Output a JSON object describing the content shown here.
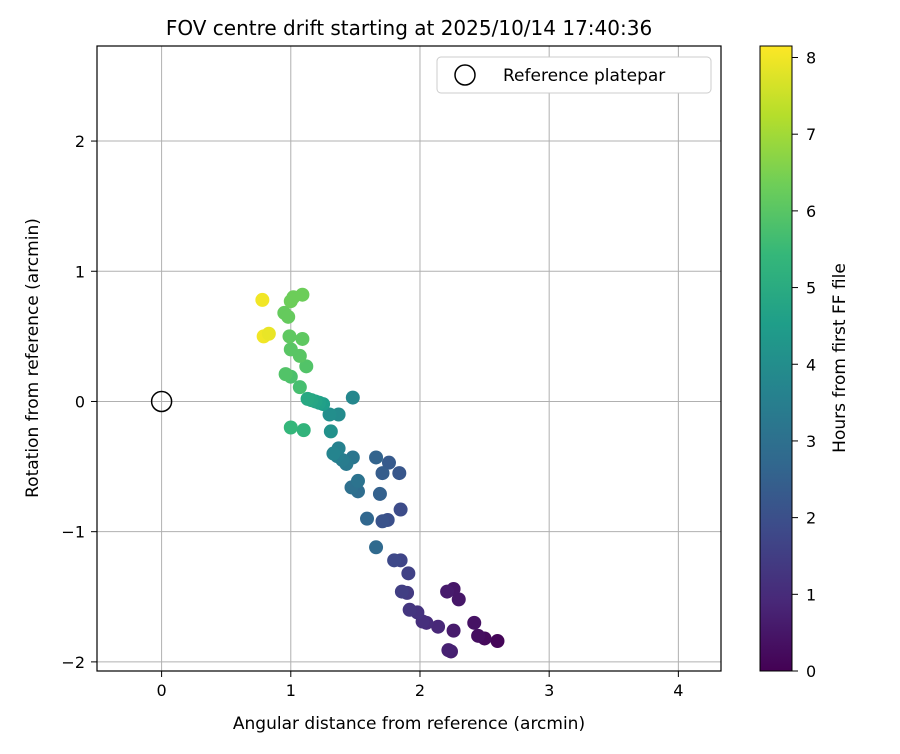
{
  "chart_data": {
    "type": "scatter",
    "title": "FOV centre drift starting at 2025/10/14 17:40:36",
    "xlabel": "Angular distance from reference (arcmin)",
    "ylabel": "Rotation from reference (arcmin)",
    "xlim": [
      -0.5,
      4.33
    ],
    "ylim": [
      -2.07,
      2.73
    ],
    "xticks": [
      0,
      1,
      2,
      3,
      4
    ],
    "xtick_labels": [
      "0",
      "1",
      "2",
      "3",
      "4"
    ],
    "yticks": [
      -2,
      -1,
      0,
      1,
      2
    ],
    "ytick_labels": [
      "−2",
      "−1",
      "0",
      "1",
      "2"
    ],
    "grid": true,
    "legend": {
      "position": "top-right",
      "label": "Reference platepar"
    },
    "reference": {
      "x": 0,
      "y": 0
    },
    "colorbar": {
      "label": "Hours from first FF file",
      "range": [
        0,
        8.15
      ],
      "ticks": [
        0,
        1,
        2,
        3,
        4,
        5,
        6,
        7,
        8
      ],
      "tick_labels": [
        "0",
        "1",
        "2",
        "3",
        "4",
        "5",
        "6",
        "7",
        "8"
      ],
      "colormap": [
        "#440154",
        "#482878",
        "#3e4989",
        "#31688e",
        "#26828e",
        "#1f9e89",
        "#35b779",
        "#6ece58",
        "#b5de2b",
        "#fde725"
      ]
    },
    "points": [
      {
        "x": 2.6,
        "y": -1.84,
        "t": 0.1
      },
      {
        "x": 2.5,
        "y": -1.82,
        "t": 0.2
      },
      {
        "x": 2.45,
        "y": -1.8,
        "t": 0.3
      },
      {
        "x": 2.42,
        "y": -1.7,
        "t": 0.4
      },
      {
        "x": 2.3,
        "y": -1.52,
        "t": 0.5
      },
      {
        "x": 2.26,
        "y": -1.44,
        "t": 0.5
      },
      {
        "x": 2.21,
        "y": -1.46,
        "t": 0.6
      },
      {
        "x": 2.26,
        "y": -1.76,
        "t": 0.6
      },
      {
        "x": 2.24,
        "y": -1.92,
        "t": 0.7
      },
      {
        "x": 2.22,
        "y": -1.91,
        "t": 0.75
      },
      {
        "x": 2.14,
        "y": -1.73,
        "t": 0.9
      },
      {
        "x": 2.05,
        "y": -1.7,
        "t": 1.0
      },
      {
        "x": 2.02,
        "y": -1.69,
        "t": 1.1
      },
      {
        "x": 1.98,
        "y": -1.62,
        "t": 1.2
      },
      {
        "x": 1.92,
        "y": -1.6,
        "t": 1.3
      },
      {
        "x": 1.9,
        "y": -1.47,
        "t": 1.4
      },
      {
        "x": 1.86,
        "y": -1.46,
        "t": 1.5
      },
      {
        "x": 1.91,
        "y": -1.32,
        "t": 1.6
      },
      {
        "x": 1.85,
        "y": -1.22,
        "t": 1.7
      },
      {
        "x": 1.8,
        "y": -1.22,
        "t": 1.8
      },
      {
        "x": 1.85,
        "y": -0.83,
        "t": 1.9
      },
      {
        "x": 1.75,
        "y": -0.91,
        "t": 2.0
      },
      {
        "x": 1.71,
        "y": -0.92,
        "t": 2.1
      },
      {
        "x": 1.84,
        "y": -0.55,
        "t": 2.2
      },
      {
        "x": 1.76,
        "y": -0.47,
        "t": 2.3
      },
      {
        "x": 1.71,
        "y": -0.55,
        "t": 2.4
      },
      {
        "x": 1.69,
        "y": -0.71,
        "t": 2.5
      },
      {
        "x": 1.66,
        "y": -0.43,
        "t": 2.6
      },
      {
        "x": 1.59,
        "y": -0.9,
        "t": 2.7
      },
      {
        "x": 1.66,
        "y": -1.12,
        "t": 2.8
      },
      {
        "x": 1.52,
        "y": -0.69,
        "t": 2.9
      },
      {
        "x": 1.47,
        "y": -0.66,
        "t": 3.0
      },
      {
        "x": 1.52,
        "y": -0.61,
        "t": 3.1
      },
      {
        "x": 1.48,
        "y": -0.43,
        "t": 3.2
      },
      {
        "x": 1.43,
        "y": -0.48,
        "t": 3.3
      },
      {
        "x": 1.4,
        "y": -0.45,
        "t": 3.4
      },
      {
        "x": 1.36,
        "y": -0.42,
        "t": 3.5
      },
      {
        "x": 1.37,
        "y": -0.36,
        "t": 3.6
      },
      {
        "x": 1.33,
        "y": -0.4,
        "t": 3.7
      },
      {
        "x": 1.48,
        "y": 0.03,
        "t": 3.8
      },
      {
        "x": 1.37,
        "y": -0.1,
        "t": 3.9
      },
      {
        "x": 1.3,
        "y": -0.1,
        "t": 4.0
      },
      {
        "x": 1.31,
        "y": -0.23,
        "t": 4.1
      },
      {
        "x": 1.25,
        "y": -0.02,
        "t": 4.5
      },
      {
        "x": 1.22,
        "y": -0.01,
        "t": 4.6
      },
      {
        "x": 1.19,
        "y": 0.0,
        "t": 4.7
      },
      {
        "x": 1.16,
        "y": 0.01,
        "t": 4.8
      },
      {
        "x": 1.13,
        "y": 0.02,
        "t": 4.9
      },
      {
        "x": 1.1,
        "y": -0.22,
        "t": 5.3
      },
      {
        "x": 1.0,
        "y": -0.2,
        "t": 5.4
      },
      {
        "x": 1.07,
        "y": 0.11,
        "t": 5.7
      },
      {
        "x": 1.0,
        "y": 0.19,
        "t": 5.8
      },
      {
        "x": 0.96,
        "y": 0.21,
        "t": 5.9
      },
      {
        "x": 1.12,
        "y": 0.27,
        "t": 5.9
      },
      {
        "x": 1.07,
        "y": 0.35,
        "t": 6.0
      },
      {
        "x": 1.0,
        "y": 0.4,
        "t": 6.0
      },
      {
        "x": 1.09,
        "y": 0.48,
        "t": 6.1
      },
      {
        "x": 0.99,
        "y": 0.5,
        "t": 6.1
      },
      {
        "x": 0.95,
        "y": 0.68,
        "t": 6.2
      },
      {
        "x": 0.98,
        "y": 0.65,
        "t": 6.2
      },
      {
        "x": 1.0,
        "y": 0.77,
        "t": 6.3
      },
      {
        "x": 1.02,
        "y": 0.8,
        "t": 6.3
      },
      {
        "x": 1.09,
        "y": 0.82,
        "t": 6.3
      },
      {
        "x": 0.78,
        "y": 0.78,
        "t": 8.0
      },
      {
        "x": 0.79,
        "y": 0.5,
        "t": 8.0
      },
      {
        "x": 0.83,
        "y": 0.52,
        "t": 7.9
      }
    ]
  }
}
